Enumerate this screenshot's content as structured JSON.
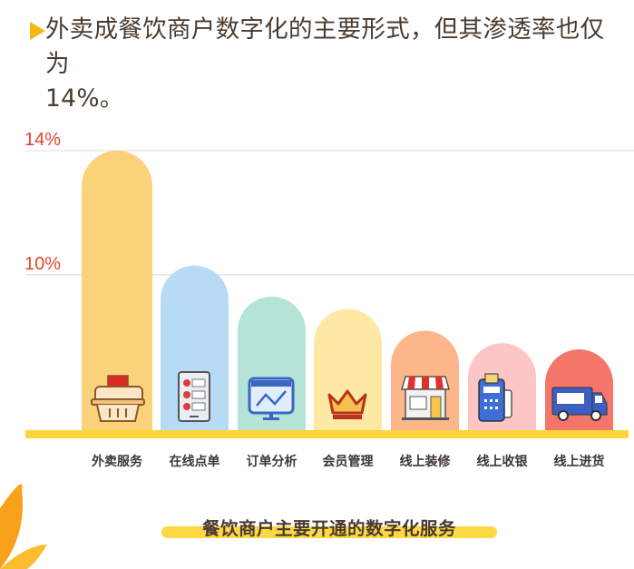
{
  "headline": {
    "line1": "外卖成餐饮商户数字化的主要形式，但其渗透率也仅为",
    "line2": "14%。"
  },
  "chart_data": {
    "type": "bar",
    "title": "餐饮商户主要开通的数字化服务",
    "categories": [
      "外卖服务",
      "在线点单",
      "订单分析",
      "会员管理",
      "线上装修",
      "线上收银",
      "线上进货"
    ],
    "values": [
      14,
      10.3,
      9.3,
      8.9,
      8.2,
      7.8,
      7.6
    ],
    "colors": [
      "#f9d27a",
      "#b8dbf5",
      "#b5e3d6",
      "#fde8a4",
      "#fdb68a",
      "#fdc6c6",
      "#f4756a"
    ],
    "icons": [
      "food-box-icon",
      "menu-list-icon",
      "analytics-monitor-icon",
      "crown-icon",
      "storefront-icon",
      "pos-terminal-icon",
      "delivery-truck-icon"
    ],
    "yticks": [
      {
        "value": 10,
        "label": "10%"
      },
      {
        "value": 14,
        "label": "14%"
      }
    ],
    "ylim": [
      5,
      14
    ],
    "grid": true,
    "xlabel": "",
    "ylabel": "",
    "accent_axis_color": "#fcd53a",
    "tick_label_color": "#e8412c"
  }
}
